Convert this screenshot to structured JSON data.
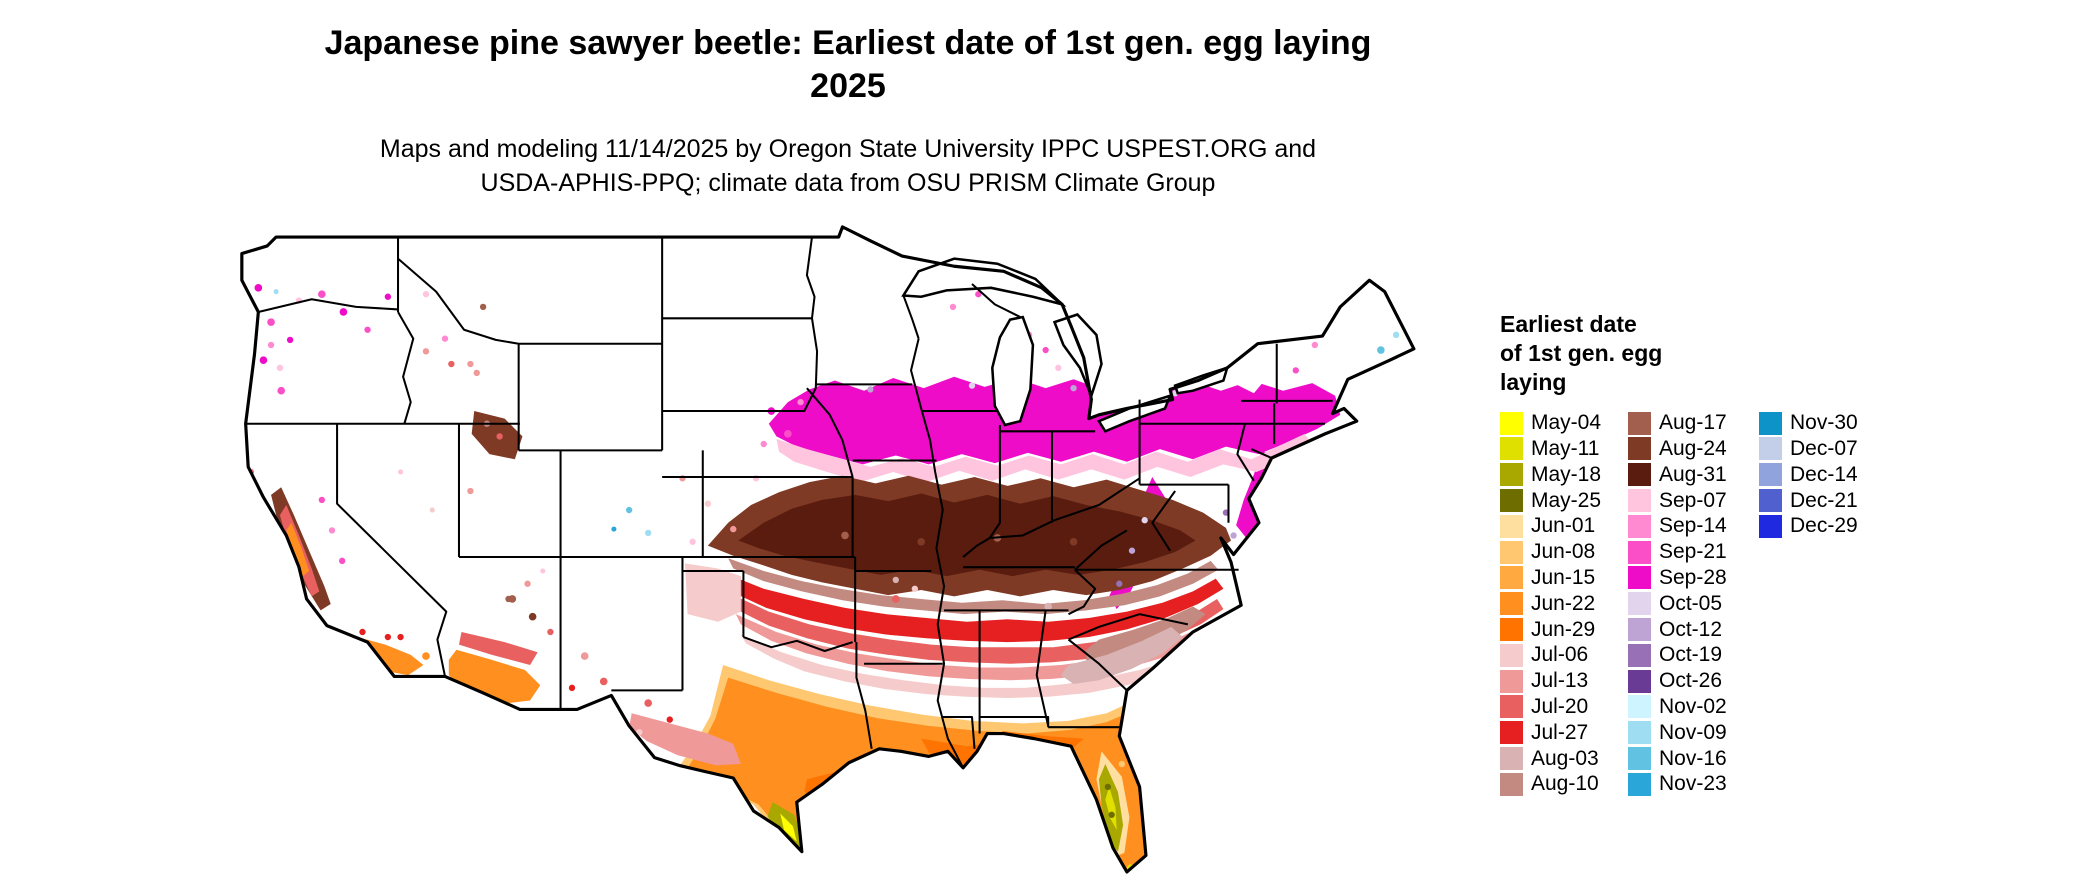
{
  "title": {
    "line1": "Japanese pine sawyer beetle: Earliest date of 1st gen. egg laying",
    "line2": "2025"
  },
  "subtitle": {
    "line1": "Maps and modeling 11/14/2025 by Oregon State University IPPC USPEST.ORG and",
    "line2": "USDA-APHIS-PPQ; climate data from OSU PRISM Climate Group"
  },
  "legend": {
    "title_lines": [
      "Earliest date",
      "of 1st gen. egg",
      "laying"
    ],
    "columns": [
      {
        "items": [
          {
            "label": "May-04",
            "color": "#ffff00"
          },
          {
            "label": "May-11",
            "color": "#e0e000"
          },
          {
            "label": "May-18",
            "color": "#a8a800"
          },
          {
            "label": "May-25",
            "color": "#6e6e00"
          },
          {
            "label": "Jun-01",
            "color": "#ffdfa0"
          },
          {
            "label": "Jun-08",
            "color": "#ffc870"
          },
          {
            "label": "Jun-15",
            "color": "#ffa940"
          },
          {
            "label": "Jun-22",
            "color": "#ff8f1f"
          },
          {
            "label": "Jun-29",
            "color": "#ff7400"
          },
          {
            "label": "Jul-06",
            "color": "#f5cbcb"
          },
          {
            "label": "Jul-13",
            "color": "#f09999"
          },
          {
            "label": "Jul-20",
            "color": "#e86060"
          },
          {
            "label": "Jul-27",
            "color": "#e62020"
          },
          {
            "label": "Aug-03",
            "color": "#d9b3b3"
          },
          {
            "label": "Aug-10",
            "color": "#c28a80"
          }
        ]
      },
      {
        "items": [
          {
            "label": "Aug-17",
            "color": "#a35f4d"
          },
          {
            "label": "Aug-24",
            "color": "#7f3a26"
          },
          {
            "label": "Aug-31",
            "color": "#591c0e"
          },
          {
            "label": "Sep-07",
            "color": "#ffc4de"
          },
          {
            "label": "Sep-14",
            "color": "#ff8ad2"
          },
          {
            "label": "Sep-21",
            "color": "#fb4fc8"
          },
          {
            "label": "Sep-28",
            "color": "#ee0cc8"
          },
          {
            "label": "Oct-05",
            "color": "#e2d4ec"
          },
          {
            "label": "Oct-12",
            "color": "#bda4d4"
          },
          {
            "label": "Oct-19",
            "color": "#9770b5"
          },
          {
            "label": "Oct-26",
            "color": "#6a3b95"
          },
          {
            "label": "Nov-02",
            "color": "#cef4ff"
          },
          {
            "label": "Nov-09",
            "color": "#9fdef2"
          },
          {
            "label": "Nov-16",
            "color": "#62c2e2"
          },
          {
            "label": "Nov-23",
            "color": "#2ba6d8"
          }
        ]
      },
      {
        "items": [
          {
            "label": "Nov-30",
            "color": "#0e93c8"
          },
          {
            "label": "Dec-07",
            "color": "#c3cfe8"
          },
          {
            "label": "Dec-14",
            "color": "#91a3dc"
          },
          {
            "label": "Dec-21",
            "color": "#5060cf"
          },
          {
            "label": "Dec-29",
            "color": "#1f2ae0"
          }
        ]
      }
    ]
  },
  "map": {
    "region": "Continental United States",
    "no_data_color": "#ffffff",
    "border_color": "#000000"
  }
}
